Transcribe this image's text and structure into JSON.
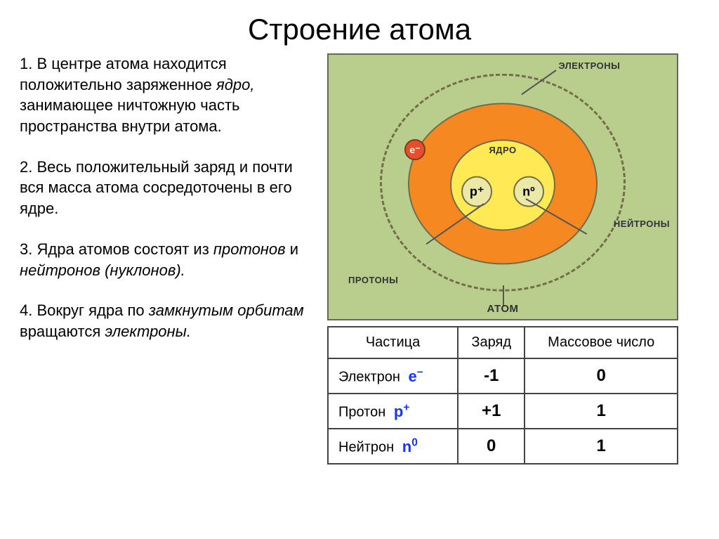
{
  "title": "Строение атома",
  "points": [
    {
      "num": "1.",
      "text": "В центре атома находится положительно заряженное ",
      "italic": "ядро,",
      "text2": " занимающее ничтожную часть пространства внутри атома."
    },
    {
      "num": "2.",
      "text": "Весь положительный заряд и почти вся масса атома сосредоточены в его ядре."
    },
    {
      "num": "3.",
      "text": "Ядра атомов состоят из ",
      "italic": "протонов",
      "text2": " и ",
      "italic2": "нейтронов (нуклонов)."
    },
    {
      "num": "4.",
      "text": "Вокруг ядра по ",
      "italic": "замкнутым орбитам",
      "text2": " вращаются ",
      "italic2": "электроны."
    }
  ],
  "diagram": {
    "electrons_label": "ЭЛЕКТРОНЫ",
    "nucleus_label": "ЯДРО",
    "neutrons_label": "НЕЙТРОНЫ",
    "protons_label": "ПРОТОНЫ",
    "atom_label": "АТОМ",
    "electron_sym": "e⁻",
    "proton_sym": "p⁺",
    "neutron_sym": "nº",
    "colors": {
      "bg": "#b9cd8c",
      "orbit_border": "#726e4a",
      "ring_outer": "#f58820",
      "ring_inner": "#ffe955",
      "nucleon": "#ece8a8",
      "electron_fill": "#e94e2c",
      "electron_border": "#7a3e1e"
    }
  },
  "table": {
    "headers": [
      "Частица",
      "Заряд",
      "Массовое число"
    ],
    "rows": [
      {
        "name": "Электрон",
        "sym": "e",
        "sup": "−",
        "charge": "-1",
        "mass": "0"
      },
      {
        "name": "Протон",
        "sym": "p",
        "sup": "+",
        "charge": "+1",
        "mass": "1"
      },
      {
        "name": "Нейтрон",
        "sym": "n",
        "sup": "0",
        "charge": "0",
        "mass": "1"
      }
    ]
  }
}
